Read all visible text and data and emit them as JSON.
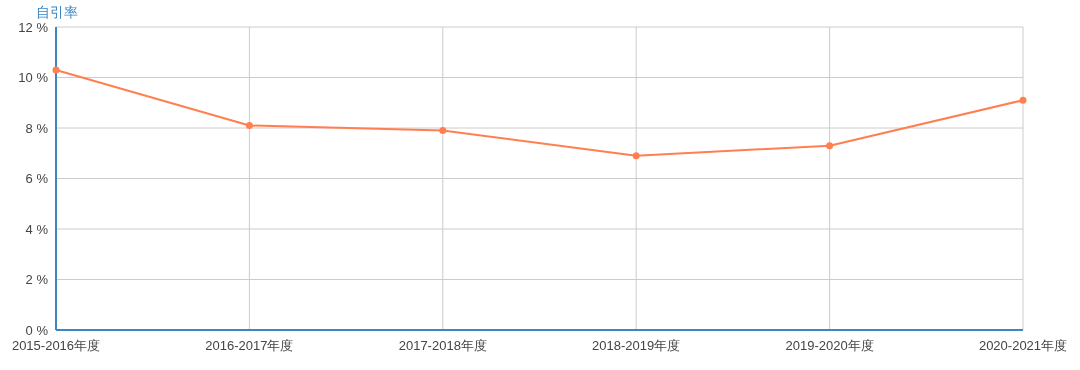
{
  "chart_data": {
    "type": "line",
    "ylabel": "自引率",
    "categories": [
      "2015-2016年度",
      "2016-2017年度",
      "2017-2018年度",
      "2018-2019年度",
      "2019-2020年度",
      "2020-2021年度"
    ],
    "series": [
      {
        "color": "#ff7f50",
        "values": [
          10.3,
          8.1,
          7.9,
          6.9,
          7.3,
          9.1
        ]
      }
    ],
    "ylim": [
      0,
      12
    ],
    "yticks": [
      {
        "value": 0,
        "label": "0 %"
      },
      {
        "value": 2,
        "label": "2 %"
      },
      {
        "value": 4,
        "label": "4 %"
      },
      {
        "value": 6,
        "label": "6 %"
      },
      {
        "value": 8,
        "label": "8 %"
      },
      {
        "value": 10,
        "label": "10 %"
      },
      {
        "value": 12,
        "label": "12 %"
      }
    ],
    "grid": true,
    "marker": "circle",
    "line_style": "solid"
  }
}
